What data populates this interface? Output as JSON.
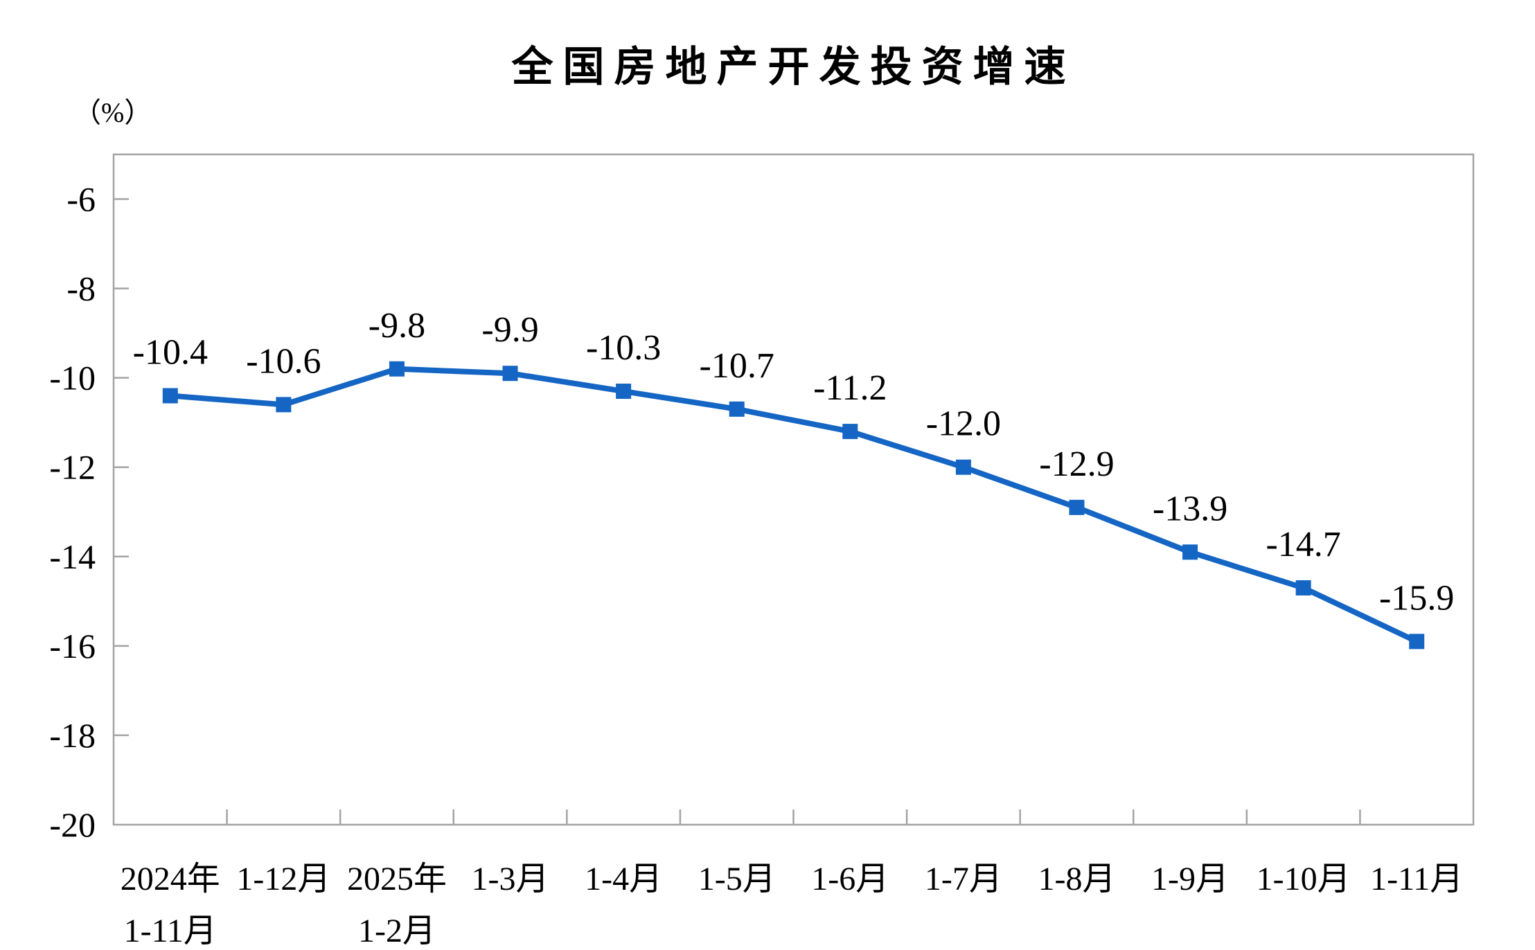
{
  "page": {
    "background": "#ffffff"
  },
  "chart_data": {
    "type": "line",
    "title": "全国房地产开发投资增速",
    "unit_label": "（%）",
    "series_name": "全国房地产开发投资增速",
    "categories": [
      [
        "2024年",
        "1-11月"
      ],
      [
        "1-12月"
      ],
      [
        "2025年",
        "1-2月"
      ],
      [
        "1-3月"
      ],
      [
        "1-4月"
      ],
      [
        "1-5月"
      ],
      [
        "1-6月"
      ],
      [
        "1-7月"
      ],
      [
        "1-8月"
      ],
      [
        "1-9月"
      ],
      [
        "1-10月"
      ],
      [
        "1-11月"
      ]
    ],
    "values": [
      -10.4,
      -10.6,
      -9.8,
      -9.9,
      -10.3,
      -10.7,
      -11.2,
      -12.0,
      -12.9,
      -13.9,
      -14.7,
      -15.9
    ],
    "data_labels": [
      "-10.4",
      "-10.6",
      "-9.8",
      "-9.9",
      "-10.3",
      "-10.7",
      "-11.2",
      "-12.0",
      "-12.9",
      "-13.9",
      "-14.7",
      "-15.9"
    ],
    "y_ticks": [
      -6,
      -8,
      -10,
      -12,
      -14,
      -16,
      -18,
      -20
    ],
    "y_tick_labels": [
      "-6",
      "-8",
      "-10",
      "-12",
      "-14",
      "-16",
      "-18",
      "-20"
    ],
    "ylim": [
      -20,
      -5
    ],
    "xlabel": "",
    "ylabel": "（%）",
    "grid": false,
    "legend_position": "none",
    "marker": "square",
    "line_color": "#1465c4",
    "marker_color": "#1465c4",
    "frame_color": "#a3a3a3",
    "tick_color": "#a3a3a3",
    "text_color": "#000000"
  }
}
